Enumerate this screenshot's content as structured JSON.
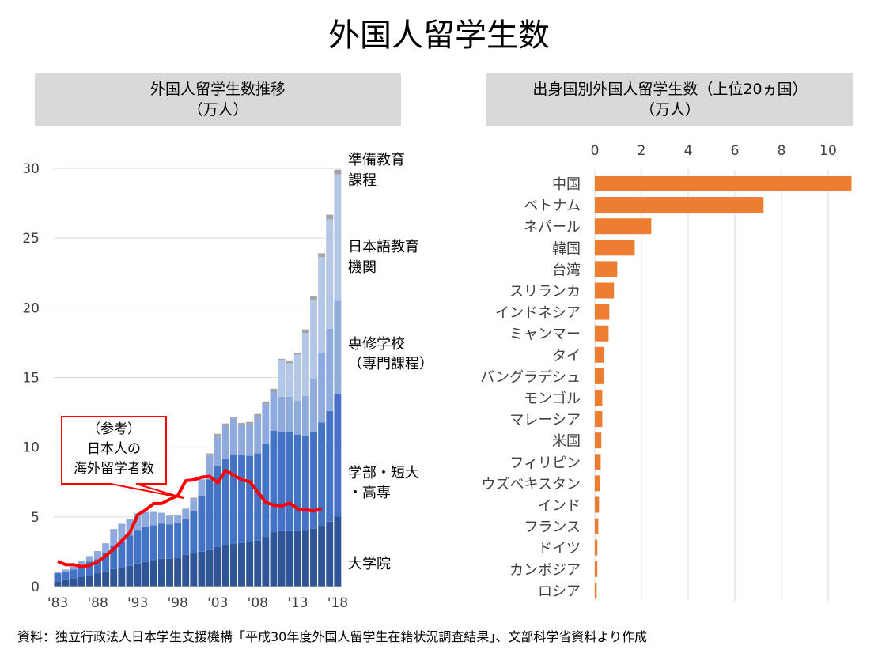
{
  "title": "外国人留学生数",
  "left_header": {
    "line1": "外国人留学生数推移",
    "line2": "（万人）"
  },
  "right_header": {
    "line1": "出身国別外国人留学生数（上位20ヵ国）",
    "line2": "（万人）"
  },
  "footer": "資料：独立行政法人日本学生支援機構「平成30年度外国人留学生在籍状況調査結果」、文部科学省資料より作成",
  "chart_data": [
    {
      "type": "bar",
      "stacked": true,
      "title": "外国人留学生数推移",
      "ylabel": "万人",
      "ylim": [
        0,
        30
      ],
      "yticks": [
        0,
        5,
        10,
        15,
        20,
        25,
        30
      ],
      "x": [
        1983,
        1984,
        1985,
        1986,
        1987,
        1988,
        1989,
        1990,
        1991,
        1992,
        1993,
        1994,
        1995,
        1996,
        1997,
        1998,
        1999,
        2000,
        2001,
        2002,
        2003,
        2004,
        2005,
        2006,
        2007,
        2008,
        2009,
        2010,
        2011,
        2012,
        2013,
        2014,
        2015,
        2016,
        2017,
        2018
      ],
      "xtick_labels": [
        "'83",
        "'88",
        "'93",
        "'98",
        "'03",
        "'08",
        "'13",
        "'18"
      ],
      "series": [
        {
          "name": "大学院",
          "color": "#2f5597",
          "values": [
            0.38,
            0.47,
            0.53,
            0.68,
            0.79,
            0.96,
            1.09,
            1.26,
            1.34,
            1.49,
            1.66,
            1.77,
            1.87,
            2.0,
            2.0,
            2.04,
            2.28,
            2.38,
            2.51,
            2.62,
            2.85,
            2.96,
            3.06,
            3.13,
            3.19,
            3.3,
            3.57,
            3.91,
            3.98,
            3.98,
            3.98,
            4.02,
            4.15,
            4.36,
            4.66,
            5.02
          ]
        },
        {
          "name": "学部・短大・高専",
          "color": "#4472c4",
          "values": [
            0.58,
            0.59,
            0.7,
            0.75,
            1.0,
            1.0,
            1.34,
            1.65,
            1.89,
            2.17,
            2.36,
            2.53,
            2.53,
            2.51,
            2.47,
            2.53,
            2.57,
            3.05,
            3.96,
            5.08,
            5.79,
            6.19,
            6.43,
            6.3,
            6.19,
            6.25,
            6.66,
            7.28,
            7.11,
            7.11,
            6.93,
            6.77,
            6.94,
            7.41,
            7.94,
            8.77
          ]
        },
        {
          "name": "専修学校（専門課程）",
          "color": "#8faadc",
          "values": [
            0.06,
            0.17,
            0.2,
            0.42,
            0.4,
            0.59,
            0.68,
            1.22,
            1.28,
            1.19,
            1.24,
            1.06,
            0.96,
            0.79,
            0.62,
            0.58,
            0.75,
            0.85,
            1.23,
            1.7,
            2.1,
            2.38,
            2.57,
            2.14,
            2.19,
            2.58,
            2.86,
            2.79,
            2.53,
            2.53,
            2.43,
            2.89,
            3.82,
            5.02,
            5.89,
            6.72
          ]
        },
        {
          "name": "日本語教育機関",
          "color": "#b4c7e7",
          "values": [
            0,
            0,
            0,
            0,
            0,
            0,
            0,
            0,
            0,
            0,
            0,
            0,
            0,
            0,
            0,
            0,
            0,
            0,
            0,
            0,
            0,
            0,
            0,
            0,
            0,
            0,
            0,
            0,
            2.61,
            2.4,
            3.3,
            4.51,
            5.66,
            6.85,
            7.85,
            9.06
          ]
        },
        {
          "name": "準備教育課程",
          "color": "#a5a5a5",
          "values": [
            0,
            0,
            0,
            0,
            0,
            0,
            0,
            0,
            0,
            0,
            0,
            0,
            0,
            0,
            0,
            0,
            0,
            0.1,
            0,
            0.15,
            0.22,
            0.17,
            0.09,
            0.17,
            0.24,
            0.25,
            0.19,
            0.21,
            0.11,
            0.15,
            0.15,
            0.26,
            0.24,
            0.27,
            0.34,
            0.34
          ]
        }
      ],
      "line": {
        "name": "日本人の海外留学者数",
        "color": "#ff0000",
        "x": [
          1983,
          1984,
          1985,
          1986,
          1987,
          1988,
          1989,
          1990,
          1991,
          1992,
          1993,
          1994,
          1995,
          1996,
          1997,
          1998,
          1999,
          2000,
          2001,
          2002,
          2003,
          2004,
          2005,
          2006,
          2007,
          2008,
          2009,
          2010,
          2011,
          2012,
          2013,
          2014,
          2015,
          2016
        ],
        "values": [
          1.81,
          1.57,
          1.57,
          1.43,
          1.53,
          1.79,
          2.21,
          2.7,
          3.28,
          3.87,
          5.15,
          5.51,
          5.96,
          5.96,
          6.26,
          6.53,
          7.6,
          7.66,
          7.85,
          7.91,
          7.45,
          8.34,
          7.98,
          7.66,
          7.53,
          6.79,
          6.04,
          5.85,
          5.79,
          6.0,
          5.57,
          5.51,
          5.43,
          5.57
        ]
      },
      "series_labels": [
        [
          "準備教育",
          "課程"
        ],
        [
          "日本語教育",
          "機関"
        ],
        [
          "専修学校",
          "（専門課程）"
        ],
        [
          "学部・短大",
          "・高専"
        ],
        [
          "大学院"
        ]
      ],
      "annotation": [
        "（参考）",
        "日本人の",
        "海外留学者数"
      ]
    },
    {
      "type": "bar",
      "orientation": "horizontal",
      "title": "出身国別外国人留学生数（上位20ヵ国）",
      "xlim": [
        0,
        11
      ],
      "xticks": [
        0,
        2,
        4,
        6,
        8,
        10
      ],
      "color": "#ed7d31",
      "categories": [
        "中国",
        "ベトナム",
        "ネパール",
        "韓国",
        "台湾",
        "スリランカ",
        "インドネシア",
        "ミャンマー",
        "タイ",
        "バングラデシュ",
        "モンゴル",
        "マレーシア",
        "米国",
        "フィリピン",
        "ウズベキスタン",
        "インド",
        "フランス",
        "ドイツ",
        "カンボジア",
        "ロシア"
      ],
      "values": [
        11.0,
        7.23,
        2.42,
        1.71,
        0.96,
        0.82,
        0.62,
        0.59,
        0.38,
        0.38,
        0.32,
        0.32,
        0.28,
        0.25,
        0.21,
        0.18,
        0.15,
        0.11,
        0.11,
        0.08
      ]
    }
  ]
}
